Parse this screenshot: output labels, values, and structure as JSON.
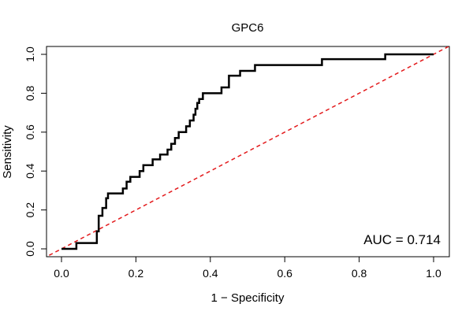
{
  "chart_data": {
    "type": "line",
    "title": "GPC6",
    "xlabel": "1 − Specificity",
    "ylabel": "Sensitivity",
    "xlim": [
      0,
      1
    ],
    "ylim": [
      0,
      1
    ],
    "x_ticks": [
      "0.0",
      "0.2",
      "0.4",
      "0.6",
      "0.8",
      "1.0"
    ],
    "y_ticks": [
      "0.0",
      "0.2",
      "0.4",
      "0.6",
      "0.8",
      "1.0"
    ],
    "annotation": "AUC = 0.714",
    "grid": false,
    "series": [
      {
        "style": "roc-curve",
        "color": "#000000",
        "x": [
          0,
          0.04,
          0.04,
          0.095,
          0.095,
          0.1,
          0.1,
          0.11,
          0.11,
          0.12,
          0.12,
          0.125,
          0.125,
          0.165,
          0.165,
          0.175,
          0.175,
          0.185,
          0.185,
          0.21,
          0.21,
          0.22,
          0.22,
          0.245,
          0.245,
          0.265,
          0.265,
          0.285,
          0.285,
          0.295,
          0.295,
          0.305,
          0.305,
          0.315,
          0.315,
          0.335,
          0.335,
          0.345,
          0.345,
          0.355,
          0.355,
          0.36,
          0.36,
          0.365,
          0.365,
          0.37,
          0.37,
          0.38,
          0.38,
          0.43,
          0.43,
          0.45,
          0.45,
          0.48,
          0.48,
          0.52,
          0.52,
          0.7,
          0.7,
          0.87,
          0.87,
          1.0
        ],
        "y": [
          0,
          0,
          0.03,
          0.03,
          0.09,
          0.09,
          0.17,
          0.17,
          0.21,
          0.21,
          0.26,
          0.26,
          0.285,
          0.285,
          0.31,
          0.31,
          0.345,
          0.345,
          0.37,
          0.37,
          0.4,
          0.4,
          0.43,
          0.43,
          0.46,
          0.46,
          0.485,
          0.485,
          0.51,
          0.51,
          0.54,
          0.54,
          0.57,
          0.57,
          0.6,
          0.6,
          0.63,
          0.63,
          0.66,
          0.66,
          0.69,
          0.69,
          0.72,
          0.72,
          0.75,
          0.75,
          0.77,
          0.77,
          0.8,
          0.8,
          0.83,
          0.83,
          0.89,
          0.89,
          0.915,
          0.915,
          0.945,
          0.945,
          0.975,
          0.975,
          1.0,
          1.0
        ]
      },
      {
        "style": "reference-diagonal",
        "color": "#e31a1c",
        "dashed": true,
        "x": [
          -0.05,
          1.05
        ],
        "y": [
          -0.05,
          1.05
        ]
      }
    ]
  }
}
